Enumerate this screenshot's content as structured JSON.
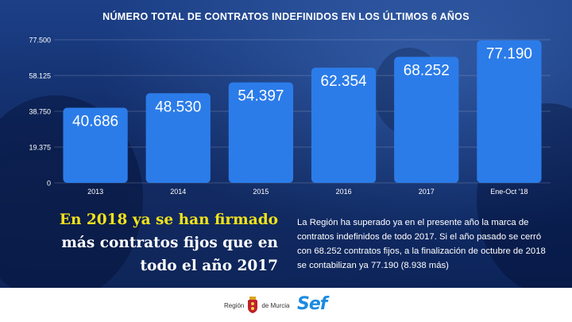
{
  "title": "NÚMERO TOTAL DE CONTRATOS INDEFINIDOS EN LOS ÚLTIMOS 6 AÑOS",
  "chart_data": {
    "type": "bar",
    "title": "NÚMERO TOTAL DE CONTRATOS INDEFINIDOS EN LOS ÚLTIMOS 6 AÑOS",
    "categories": [
      "2013",
      "2014",
      "2015",
      "2016",
      "2017",
      "Ene-Oct '18"
    ],
    "values": [
      40686,
      48530,
      54397,
      62354,
      68252,
      77190
    ],
    "value_labels": [
      "40.686",
      "48.530",
      "54.397",
      "62.354",
      "68.252",
      "77.190"
    ],
    "yticks": [
      0,
      19375,
      38750,
      58125,
      77500
    ],
    "ytick_labels": [
      "0",
      "19.375",
      "38.750",
      "58.125",
      "77.500"
    ],
    "ylim": [
      0,
      77500
    ],
    "xlabel": "",
    "ylabel": "",
    "grid": true,
    "bar_color": "#2b7ce9"
  },
  "headline": {
    "highlight": "En 2018 ya se han firmado",
    "rest_line1": "más contratos fijos que en",
    "rest_line2": "todo el año 2017"
  },
  "body_text": "La Región ha superado ya en el presente año la marca de contratos indefinidos de todo 2017. Si el año pasado se cerró con 68.252 contratos fijos, a la finalización de octubre de 2018 se contabilizan ya 77.190 (8.938 más)",
  "footer": {
    "region_left": "Región",
    "region_right": "de Murcia",
    "sef_logo": "Sef"
  },
  "colors": {
    "highlight": "#f2e21a",
    "sef": "#1b8be0"
  }
}
